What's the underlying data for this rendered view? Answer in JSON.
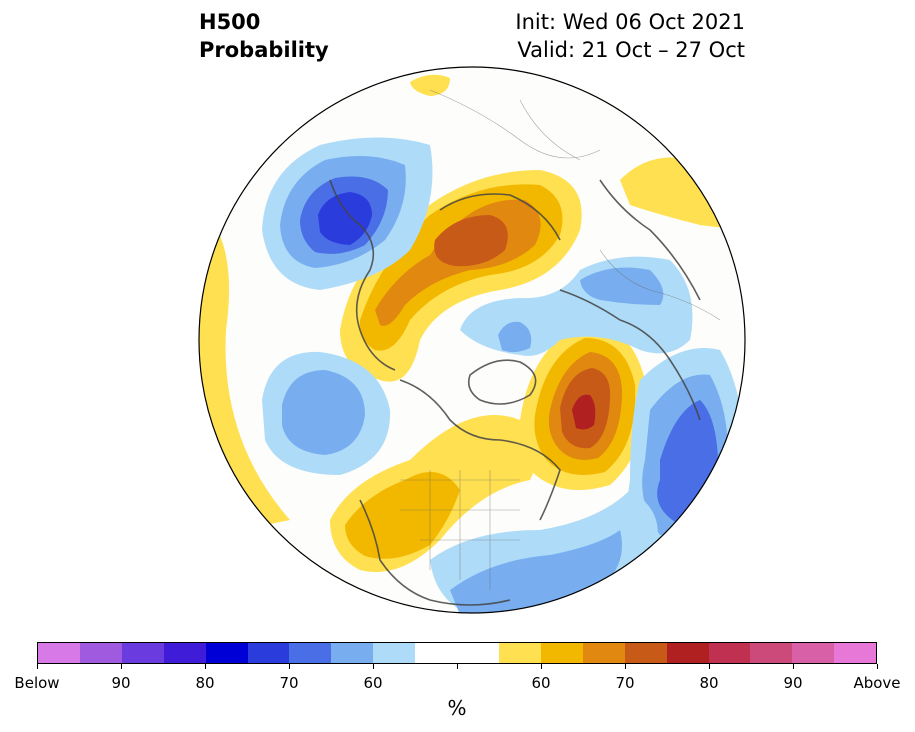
{
  "header": {
    "title_line1": "H500",
    "title_line2": "Probability",
    "init": "Init: Wed 06 Oct 2021",
    "valid": "Valid: 21 Oct – 27 Oct"
  },
  "colorbar": {
    "colors": [
      "#d77ae8",
      "#a05ae0",
      "#6a3ce0",
      "#3e1cd8",
      "#0000d6",
      "#2a3cdc",
      "#4a6ee6",
      "#78aef0",
      "#aedcf8",
      "#ffffff",
      "#ffffff",
      "#ffe050",
      "#f2b800",
      "#e08810",
      "#c85a18",
      "#b02020",
      "#c03050",
      "#cc4a7a",
      "#d860a6",
      "#e878d8"
    ],
    "tick_labels": [
      "Below",
      "90",
      "80",
      "70",
      "60",
      "60",
      "70",
      "80",
      "90",
      "Above"
    ],
    "unit": "%"
  }
}
